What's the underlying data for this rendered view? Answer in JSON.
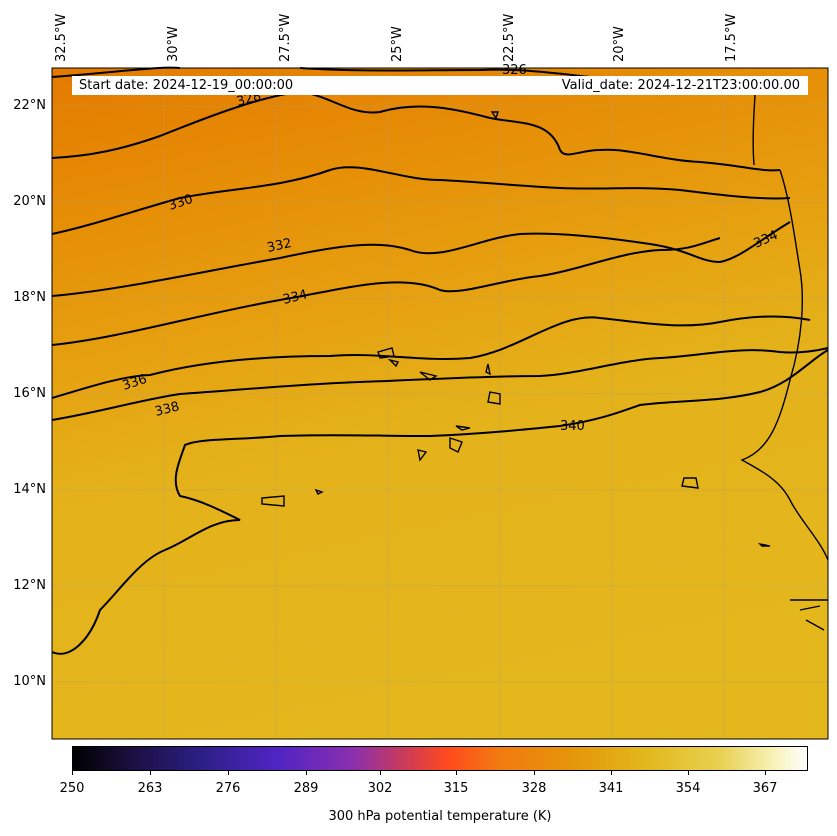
{
  "map": {
    "start_date": "Start date: 2024-12-19_00:00:00",
    "valid_date": "Valid_date: 2024-12-21T23:00:00.00",
    "lon_labels": [
      "32.5°W",
      "30°W",
      "27.5°W",
      "25°W",
      "22.5°W",
      "20°W",
      "17.5°W"
    ],
    "lat_labels": [
      "22°N",
      "20°N",
      "18°N",
      "16°N",
      "14°N",
      "12°N",
      "10°N"
    ],
    "contour_labels": [
      "326",
      "328",
      "330",
      "332",
      "334",
      "336",
      "338",
      "340",
      "334"
    ],
    "colors": {
      "dark_orange": "#e57f00",
      "mid_orange": "#e79a10",
      "gold": "#e4b51c",
      "contour": "#000000"
    }
  },
  "colorbar": {
    "title": "300 hPa potential temperature (K)",
    "ticks": [
      "250",
      "263",
      "276",
      "289",
      "302",
      "315",
      "328",
      "341",
      "354",
      "367"
    ],
    "range": [
      250,
      373
    ]
  }
}
